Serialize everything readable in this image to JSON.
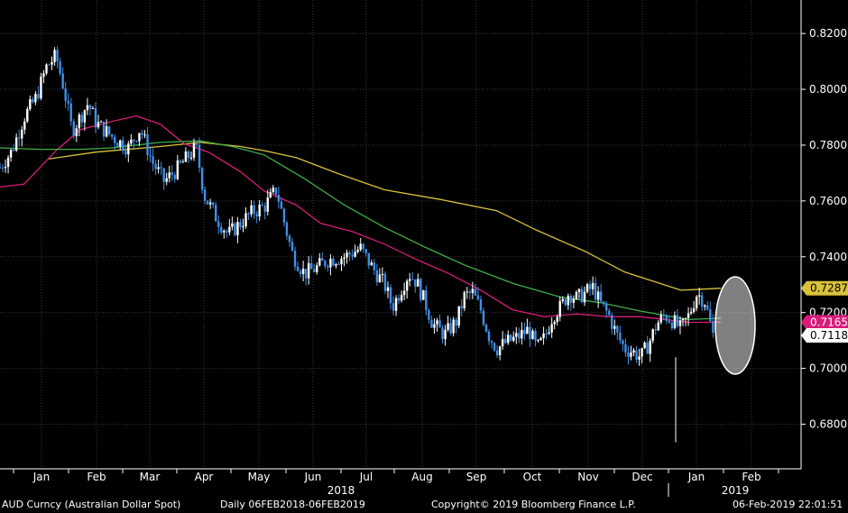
{
  "footer": {
    "security": "AUD Curncy (Australian Dollar Spot)",
    "period": "Daily 06FEB2018-06FEB2019",
    "copyright": "Copyright© 2019 Bloomberg Finance L.P.",
    "timestamp": "06-Feb-2019 22:01:51"
  },
  "chart_data": {
    "type": "candlestick",
    "title": "",
    "xlabel": "",
    "ylabel": "",
    "ylim": [
      0.664,
      0.832
    ],
    "y_ticks": [
      "0.8200",
      "0.8000",
      "0.7800",
      "0.7600",
      "0.7400",
      "0.7200",
      "0.7000",
      "0.6800"
    ],
    "months": [
      "Jan",
      "Feb",
      "Mar",
      "Apr",
      "May",
      "Jun",
      "Jul",
      "Aug",
      "Sep",
      "Oct",
      "Nov",
      "Dec",
      "Jan",
      "Feb"
    ],
    "years": [
      "2018",
      "2019"
    ],
    "colors": {
      "background": "#000000",
      "up_candle": "#ffffff",
      "down_candle": "#3f8fe8",
      "axis": "#ffffff",
      "grid": "#3a3a3a",
      "sma_50": "#d81b7a",
      "sma_100": "#3fae49",
      "sma_200": "#d9c13b"
    },
    "last_price": {
      "label": "0.7118",
      "value": 0.7118,
      "color": "#ffffff",
      "text_color": "#000000"
    },
    "series": [
      {
        "name": "",
        "role": "sma_200",
        "color": "#d9c13b",
        "label": "0.7287",
        "values": [
          [
            0.06,
            0.775
          ],
          [
            0.12,
            0.7775
          ],
          [
            0.2,
            0.7795
          ],
          [
            0.25,
            0.781
          ],
          [
            0.3,
            0.7795
          ],
          [
            0.33,
            0.778
          ],
          [
            0.37,
            0.7755
          ],
          [
            0.42,
            0.77
          ],
          [
            0.48,
            0.764
          ],
          [
            0.55,
            0.7605
          ],
          [
            0.62,
            0.7565
          ],
          [
            0.67,
            0.7495
          ],
          [
            0.73,
            0.742
          ],
          [
            0.78,
            0.7345
          ],
          [
            0.85,
            0.728
          ],
          [
            0.9,
            0.7287
          ]
        ]
      },
      {
        "name": "",
        "role": "sma_50",
        "color": "#d81b7a",
        "label": "0.7165",
        "values": [
          [
            0.0,
            0.765
          ],
          [
            0.03,
            0.766
          ],
          [
            0.07,
            0.778
          ],
          [
            0.1,
            0.7855
          ],
          [
            0.14,
            0.7885
          ],
          [
            0.17,
            0.7905
          ],
          [
            0.2,
            0.7875
          ],
          [
            0.23,
            0.7805
          ],
          [
            0.26,
            0.7775
          ],
          [
            0.3,
            0.7705
          ],
          [
            0.33,
            0.7635
          ],
          [
            0.37,
            0.7585
          ],
          [
            0.4,
            0.752
          ],
          [
            0.44,
            0.749
          ],
          [
            0.48,
            0.7445
          ],
          [
            0.52,
            0.739
          ],
          [
            0.56,
            0.734
          ],
          [
            0.6,
            0.728
          ],
          [
            0.64,
            0.721
          ],
          [
            0.68,
            0.7185
          ],
          [
            0.72,
            0.7195
          ],
          [
            0.76,
            0.7185
          ],
          [
            0.8,
            0.7185
          ],
          [
            0.86,
            0.7165
          ],
          [
            0.9,
            0.7165
          ]
        ]
      },
      {
        "name": "",
        "role": "sma_100",
        "color": "#3fae49",
        "label": "",
        "values": [
          [
            0.0,
            0.779
          ],
          [
            0.05,
            0.7785
          ],
          [
            0.1,
            0.7785
          ],
          [
            0.14,
            0.779
          ],
          [
            0.2,
            0.781
          ],
          [
            0.25,
            0.7815
          ],
          [
            0.29,
            0.7795
          ],
          [
            0.33,
            0.7765
          ],
          [
            0.38,
            0.768
          ],
          [
            0.43,
            0.7585
          ],
          [
            0.48,
            0.7505
          ],
          [
            0.53,
            0.7435
          ],
          [
            0.58,
            0.737
          ],
          [
            0.64,
            0.7305
          ],
          [
            0.7,
            0.7255
          ],
          [
            0.75,
            0.7235
          ],
          [
            0.8,
            0.7205
          ],
          [
            0.86,
            0.7175
          ],
          [
            0.9,
            0.718
          ]
        ]
      }
    ],
    "price_path": [
      [
        0.0,
        0.772
      ],
      [
        0.015,
        0.778
      ],
      [
        0.03,
        0.79
      ],
      [
        0.045,
        0.797
      ],
      [
        0.058,
        0.808
      ],
      [
        0.07,
        0.812
      ],
      [
        0.08,
        0.8
      ],
      [
        0.09,
        0.785
      ],
      [
        0.1,
        0.79
      ],
      [
        0.11,
        0.795
      ],
      [
        0.12,
        0.788
      ],
      [
        0.14,
        0.783
      ],
      [
        0.16,
        0.779
      ],
      [
        0.175,
        0.786
      ],
      [
        0.19,
        0.774
      ],
      [
        0.205,
        0.767
      ],
      [
        0.22,
        0.771
      ],
      [
        0.235,
        0.776
      ],
      [
        0.245,
        0.779
      ],
      [
        0.255,
        0.762
      ],
      [
        0.27,
        0.754
      ],
      [
        0.285,
        0.748
      ],
      [
        0.3,
        0.752
      ],
      [
        0.315,
        0.756
      ],
      [
        0.33,
        0.758
      ],
      [
        0.345,
        0.764
      ],
      [
        0.355,
        0.752
      ],
      [
        0.365,
        0.741
      ],
      [
        0.38,
        0.734
      ],
      [
        0.395,
        0.736
      ],
      [
        0.41,
        0.739
      ],
      [
        0.43,
        0.74
      ],
      [
        0.45,
        0.743
      ],
      [
        0.465,
        0.736
      ],
      [
        0.48,
        0.73
      ],
      [
        0.49,
        0.722
      ],
      [
        0.5,
        0.728
      ],
      [
        0.51,
        0.734
      ],
      [
        0.52,
        0.731
      ],
      [
        0.53,
        0.724
      ],
      [
        0.54,
        0.716
      ],
      [
        0.555,
        0.712
      ],
      [
        0.57,
        0.717
      ],
      [
        0.58,
        0.726
      ],
      [
        0.59,
        0.727
      ],
      [
        0.6,
        0.721
      ],
      [
        0.61,
        0.712
      ],
      [
        0.62,
        0.707
      ],
      [
        0.63,
        0.709
      ],
      [
        0.645,
        0.711
      ],
      [
        0.66,
        0.714
      ],
      [
        0.67,
        0.707
      ],
      [
        0.68,
        0.711
      ],
      [
        0.69,
        0.719
      ],
      [
        0.7,
        0.722
      ],
      [
        0.71,
        0.727
      ],
      [
        0.72,
        0.725
      ],
      [
        0.73,
        0.727
      ],
      [
        0.74,
        0.729
      ],
      [
        0.75,
        0.723
      ],
      [
        0.76,
        0.719
      ],
      [
        0.77,
        0.712
      ],
      [
        0.78,
        0.707
      ],
      [
        0.79,
        0.706
      ],
      [
        0.8,
        0.704
      ],
      [
        0.81,
        0.709
      ],
      [
        0.82,
        0.716
      ],
      [
        0.83,
        0.719
      ],
      [
        0.84,
        0.717
      ],
      [
        0.85,
        0.714
      ],
      [
        0.86,
        0.719
      ],
      [
        0.87,
        0.727
      ],
      [
        0.88,
        0.724
      ],
      [
        0.89,
        0.712
      ]
    ],
    "annotations": [
      {
        "type": "ellipse",
        "note": "highlight of latest candles"
      }
    ]
  }
}
